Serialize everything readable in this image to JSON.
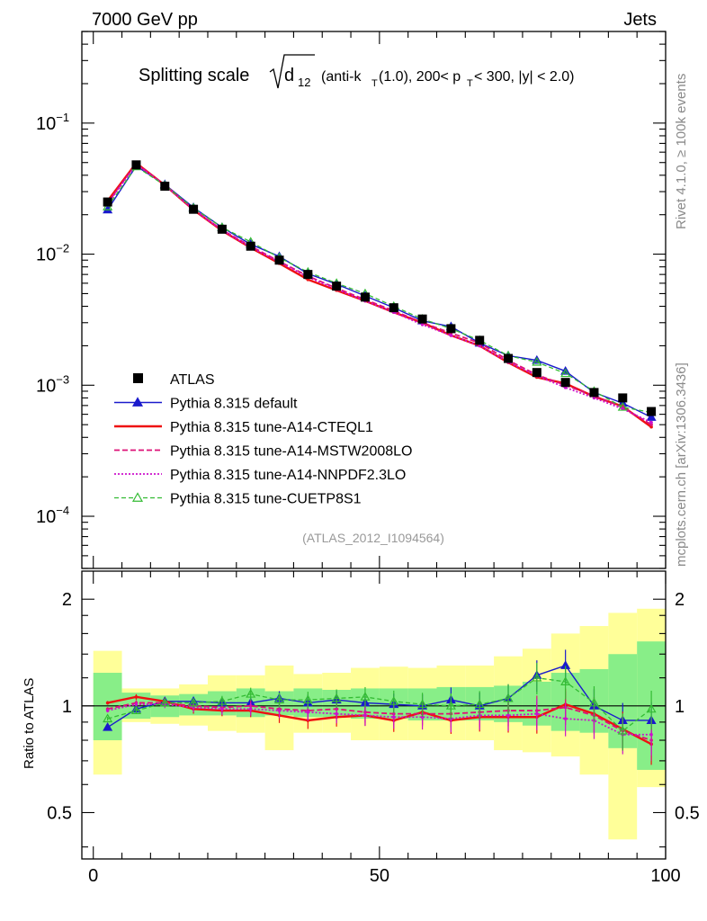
{
  "header": {
    "left": "7000 GeV pp",
    "right": "Jets"
  },
  "title": {
    "prefix": "Splitting scale",
    "d": "d",
    "d_sub": "12",
    "part1": "(anti-k",
    "part1_sub": "T",
    "part2": "(1.0), 200< p",
    "part2_sub": "T",
    "part3": " < 300, |y| < 2.0)"
  },
  "side_labels": {
    "rivet": "Rivet 4.1.0, ≥ 100k events",
    "mcplots": "mcplots.cern.ch [arXiv:1306.3436]"
  },
  "analysis_id": "(ATLAS_2012_I1094564)",
  "ratio_ylabel": "Ratio to ATLAS",
  "main_yticks": [
    {
      "value": -1,
      "base": "10",
      "exp": "−1"
    },
    {
      "value": -2,
      "base": "10",
      "exp": "−2"
    },
    {
      "value": -3,
      "base": "10",
      "exp": "−3"
    },
    {
      "value": -4,
      "base": "10",
      "exp": "−4"
    }
  ],
  "ratio_yticks": [
    {
      "value": 2,
      "label": "2"
    },
    {
      "value": 1,
      "label": "1"
    },
    {
      "value": 0.5,
      "label": "0.5"
    }
  ],
  "xticks": [
    {
      "value": 0,
      "label": "0"
    },
    {
      "value": 50,
      "label": "50"
    },
    {
      "value": 100,
      "label": "100"
    }
  ],
  "legend": [
    {
      "key": "atlas",
      "label": "ATLAS"
    },
    {
      "key": "default",
      "label": "Pythia 8.315 default"
    },
    {
      "key": "cteql1",
      "label": "Pythia 8.315 tune-A14-CTEQL1"
    },
    {
      "key": "mstw",
      "label": "Pythia 8.315 tune-A14-MSTW2008LO"
    },
    {
      "key": "nnpdf",
      "label": "Pythia 8.315 tune-A14-NNPDF2.3LO"
    },
    {
      "key": "cuetp",
      "label": "Pythia 8.315 tune-CUETP8S1"
    }
  ],
  "chart_data": {
    "type": "line",
    "title": "Splitting scale sqrt(d12) (anti-kT(1.0), 200< pT < 300, |y| < 2.0)",
    "xlabel": "",
    "ylabel": "",
    "main_yscale": "log",
    "main_ylim": [
      4e-05,
      0.5
    ],
    "ratio_ylabel": "Ratio to ATLAS",
    "ratio_ylim": [
      0.37,
      2.4
    ],
    "ratio_yscale": "log",
    "xlim": [
      -2,
      100
    ],
    "bin_edges": [
      0,
      5,
      10,
      15,
      20,
      25,
      30,
      35,
      40,
      45,
      50,
      55,
      60,
      65,
      70,
      75,
      80,
      85,
      90,
      95,
      100
    ],
    "x": [
      2.5,
      7.5,
      12.5,
      17.5,
      22.5,
      27.5,
      32.5,
      37.5,
      42.5,
      47.5,
      52.5,
      57.5,
      62.5,
      67.5,
      72.5,
      77.5,
      82.5,
      87.5,
      92.5,
      97.5
    ],
    "data": {
      "name": "ATLAS",
      "values": [
        0.025,
        0.048,
        0.033,
        0.022,
        0.0155,
        0.0115,
        0.009,
        0.007,
        0.0057,
        0.0047,
        0.0039,
        0.0032,
        0.0027,
        0.0022,
        0.0016,
        0.00125,
        0.00105,
        0.00088,
        0.0008,
        0.00063
      ],
      "band_inner": [
        [
          0.8,
          1.24
        ],
        [
          0.92,
          1.09
        ],
        [
          0.93,
          1.07
        ],
        [
          0.94,
          1.08
        ],
        [
          0.94,
          1.1
        ],
        [
          0.93,
          1.12
        ],
        [
          0.94,
          1.1
        ],
        [
          0.93,
          1.12
        ],
        [
          0.93,
          1.11
        ],
        [
          0.92,
          1.12
        ],
        [
          0.92,
          1.12
        ],
        [
          0.91,
          1.12
        ],
        [
          0.91,
          1.13
        ],
        [
          0.91,
          1.13
        ],
        [
          0.9,
          1.14
        ],
        [
          0.88,
          1.17
        ],
        [
          0.85,
          1.24
        ],
        [
          0.84,
          1.27
        ],
        [
          0.76,
          1.4
        ],
        [
          0.66,
          1.52
        ]
      ],
      "band_outer": [
        [
          0.64,
          1.43
        ],
        [
          0.9,
          1.12
        ],
        [
          0.89,
          1.12
        ],
        [
          0.88,
          1.15
        ],
        [
          0.85,
          1.22
        ],
        [
          0.84,
          1.22
        ],
        [
          0.75,
          1.3
        ],
        [
          0.84,
          1.23
        ],
        [
          0.84,
          1.24
        ],
        [
          0.8,
          1.28
        ],
        [
          0.8,
          1.29
        ],
        [
          0.8,
          1.28
        ],
        [
          0.8,
          1.3
        ],
        [
          0.8,
          1.3
        ],
        [
          0.75,
          1.38
        ],
        [
          0.74,
          1.45
        ],
        [
          0.72,
          1.6
        ],
        [
          0.64,
          1.68
        ],
        [
          0.42,
          1.83
        ],
        [
          0.59,
          1.88
        ]
      ]
    },
    "series": [
      {
        "name": "Pythia 8.315 default",
        "key": "default",
        "values": [
          0.0218,
          0.047,
          0.034,
          0.0227,
          0.016,
          0.0119,
          0.0096,
          0.0071,
          0.0059,
          0.0048,
          0.0039,
          0.0031,
          0.0028,
          0.0021,
          0.00168,
          0.00155,
          0.00128,
          0.00088,
          0.00073,
          0.00057
        ],
        "ratio": [
          0.87,
          0.98,
          1.03,
          1.03,
          1.02,
          1.02,
          1.05,
          1.02,
          1.04,
          1.02,
          1.01,
          1.0,
          1.04,
          1.0,
          1.05,
          1.22,
          1.3,
          1.0,
          0.91,
          0.91
        ]
      },
      {
        "name": "Pythia 8.315 tune-A14-CTEQL1",
        "key": "cteql1",
        "values": [
          0.0255,
          0.0495,
          0.0336,
          0.0218,
          0.0151,
          0.0112,
          0.0085,
          0.0064,
          0.0053,
          0.0044,
          0.0036,
          0.003,
          0.0024,
          0.002,
          0.00149,
          0.00115,
          0.00103,
          0.00082,
          0.00069,
          0.00048
        ],
        "ratio": [
          1.02,
          1.06,
          1.03,
          0.98,
          0.97,
          0.97,
          0.94,
          0.91,
          0.93,
          0.94,
          0.91,
          0.96,
          0.91,
          0.93,
          0.93,
          0.93,
          1.01,
          0.95,
          0.86,
          0.78
        ]
      },
      {
        "name": "Pythia 8.315 tune-A14-MSTW2008LO",
        "key": "mstw",
        "values": [
          0.0245,
          0.049,
          0.0337,
          0.022,
          0.0153,
          0.0115,
          0.0088,
          0.0068,
          0.0055,
          0.0045,
          0.0037,
          0.003,
          0.0025,
          0.0021,
          0.00155,
          0.0012,
          0.001,
          0.00083,
          0.00068,
          0.0005
        ],
        "ratio": [
          0.98,
          1.02,
          1.02,
          1.0,
          0.99,
          1.0,
          0.98,
          0.97,
          0.98,
          0.96,
          0.95,
          0.95,
          0.95,
          0.96,
          0.97,
          0.97,
          0.99,
          0.94,
          0.85,
          0.8
        ]
      },
      {
        "name": "Pythia 8.315 tune-A14-NNPDF2.3LO",
        "key": "nnpdf",
        "values": [
          0.0242,
          0.0485,
          0.0335,
          0.0219,
          0.0152,
          0.0113,
          0.0087,
          0.0067,
          0.0054,
          0.0044,
          0.0036,
          0.0029,
          0.0024,
          0.002,
          0.0015,
          0.00118,
          0.00096,
          0.0008,
          0.00066,
          0.00052
        ],
        "ratio": [
          0.97,
          1.01,
          1.01,
          0.99,
          0.98,
          0.98,
          0.97,
          0.96,
          0.95,
          0.94,
          0.93,
          0.93,
          0.92,
          0.94,
          0.94,
          0.95,
          0.92,
          0.91,
          0.83,
          0.83
        ]
      },
      {
        "name": "Pythia 8.315 tune-CUETP8S1",
        "key": "cuetp",
        "values": [
          0.023,
          0.0465,
          0.0335,
          0.0225,
          0.016,
          0.0124,
          0.0094,
          0.0073,
          0.006,
          0.005,
          0.004,
          0.0032,
          0.0027,
          0.0022,
          0.00168,
          0.0015,
          0.00123,
          0.0009,
          0.00068,
          0.00062
        ],
        "ratio": [
          0.92,
          0.97,
          1.02,
          1.02,
          1.03,
          1.08,
          1.04,
          1.04,
          1.05,
          1.06,
          1.03,
          1.01,
          1.0,
          1.01,
          1.05,
          1.2,
          1.17,
          1.02,
          0.85,
          0.98
        ]
      }
    ]
  },
  "colors": {
    "atlas": "#000000",
    "default": "#1a1acc",
    "cteql1": "#ee1111",
    "mstw": "#dd1177",
    "nnpdf": "#cc11cc",
    "cuetp": "#33bb33",
    "band_outer": "#ffff99",
    "band_inner": "#88ee88",
    "analysis_text": "#999999"
  }
}
